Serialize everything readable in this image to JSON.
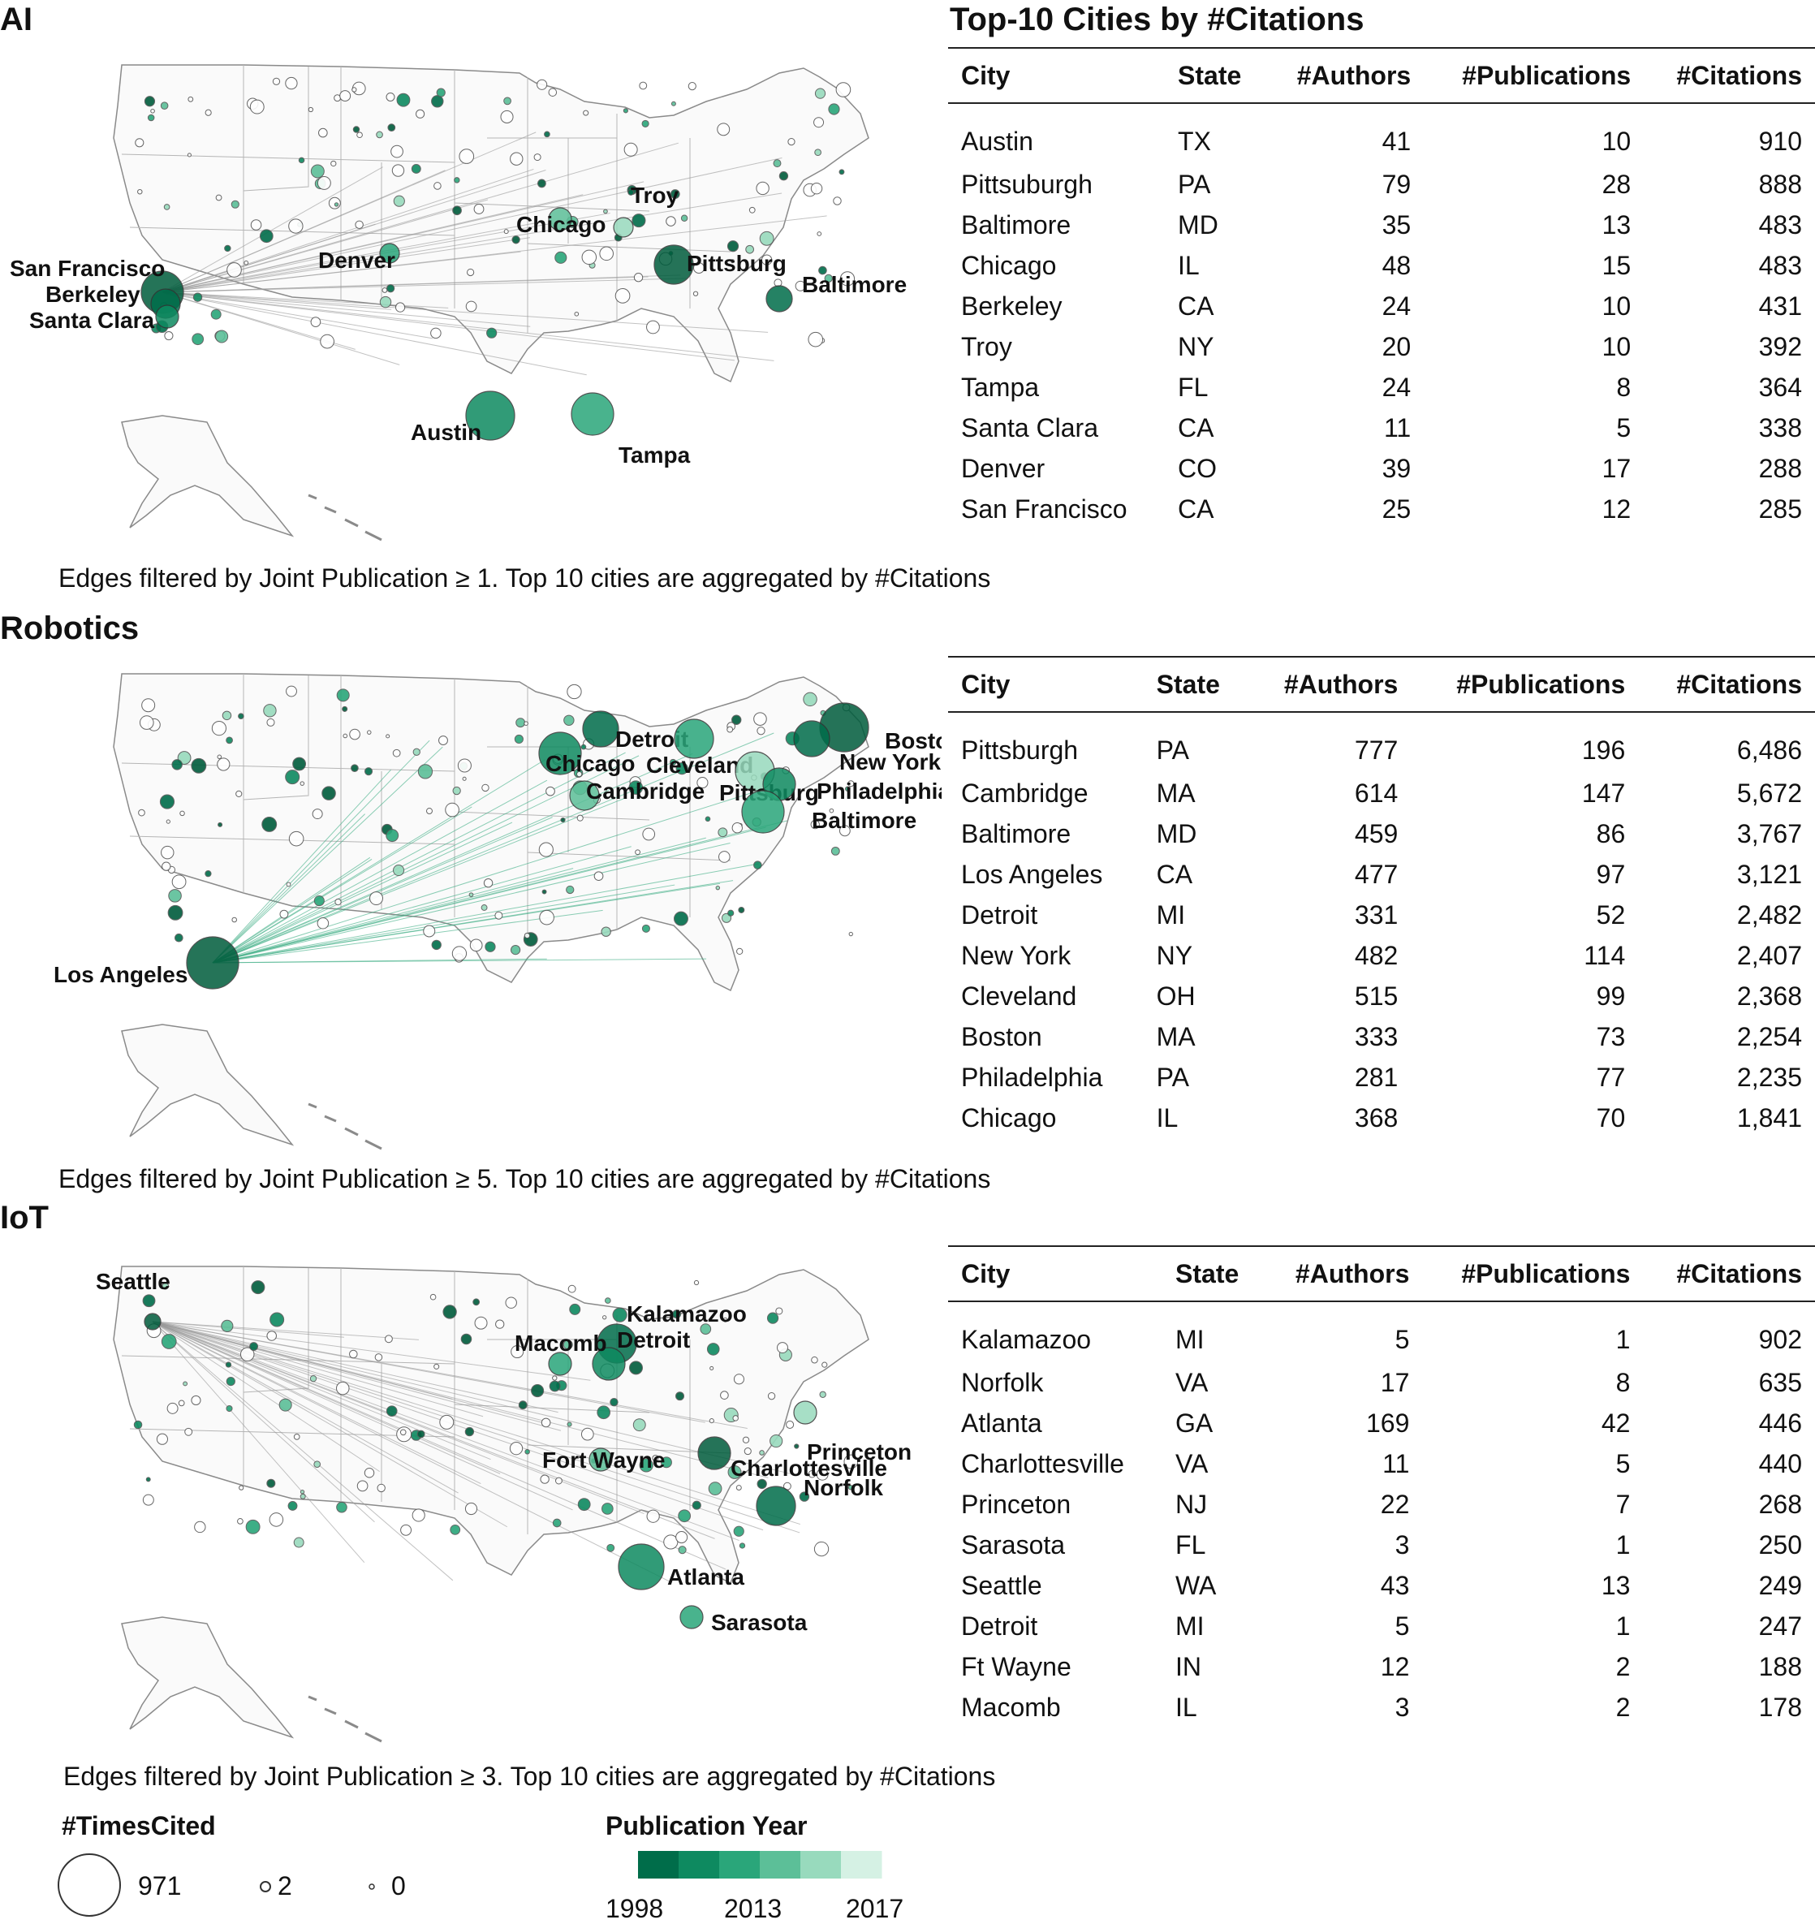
{
  "panels": [
    {
      "title": "AI",
      "caption": "Edges filtered by Joint Publication ≥ 1. Top 10 cities are aggregated by #Citations",
      "table_title": "Top-10 Cities by #Citations",
      "map_labels": [
        "San Francisco",
        "Berkeley",
        "Santa Clara",
        "Denver",
        "Chicago",
        "Troy",
        "Pittsburg",
        "Baltimore",
        "Austin",
        "Tampa"
      ]
    },
    {
      "title": "Robotics",
      "caption": "Edges filtered by Joint Publication ≥ 5. Top 10 cities are aggregated by #Citations",
      "table_title": "",
      "map_labels": [
        "Los Angeles",
        "Detroit",
        "Chicago",
        "Cleveland",
        "Cambridge",
        "Pittsburg",
        "Boston",
        "New York",
        "Philadelphia",
        "Baltimore"
      ]
    },
    {
      "title": "IoT",
      "caption": "Edges filtered by Joint Publication ≥ 3. Top 10 cities are aggregated by #Citations",
      "table_title": "",
      "map_labels": [
        "Seattle",
        "Kalamazoo",
        "Detroit",
        "Macomb",
        "Fort Wayne",
        "Princeton",
        "Charlottesville",
        "Norfolk",
        "Atlanta",
        "Sarasota"
      ]
    }
  ],
  "table_headers": [
    "City",
    "State",
    "#Authors",
    "#Publications",
    "#Citations"
  ],
  "chart_data": [
    {
      "type": "table",
      "title": "AI",
      "columns": [
        "City",
        "State",
        "#Authors",
        "#Publications",
        "#Citations"
      ],
      "rows": [
        [
          "Austin",
          "TX",
          "41",
          "10",
          "910"
        ],
        [
          "Pittsuburgh",
          "PA",
          "79",
          "28",
          "888"
        ],
        [
          "Baltimore",
          "MD",
          "35",
          "13",
          "483"
        ],
        [
          "Chicago",
          "IL",
          "48",
          "15",
          "483"
        ],
        [
          "Berkeley",
          "CA",
          "24",
          "10",
          "431"
        ],
        [
          "Troy",
          "NY",
          "20",
          "10",
          "392"
        ],
        [
          "Tampa",
          "FL",
          "24",
          "8",
          "364"
        ],
        [
          "Santa Clara",
          "CA",
          "11",
          "5",
          "338"
        ],
        [
          "Denver",
          "CO",
          "39",
          "17",
          "288"
        ],
        [
          "San Francisco",
          "CA",
          "25",
          "12",
          "285"
        ]
      ]
    },
    {
      "type": "table",
      "title": "Robotics",
      "columns": [
        "City",
        "State",
        "#Authors",
        "#Publications",
        "#Citations"
      ],
      "rows": [
        [
          "Pittsburgh",
          "PA",
          "777",
          "196",
          "6,486"
        ],
        [
          "Cambridge",
          "MA",
          "614",
          "147",
          "5,672"
        ],
        [
          "Baltimore",
          "MD",
          "459",
          "86",
          "3,767"
        ],
        [
          "Los Angeles",
          "CA",
          "477",
          "97",
          "3,121"
        ],
        [
          "Detroit",
          "MI",
          "331",
          "52",
          "2,482"
        ],
        [
          "New York",
          "NY",
          "482",
          "114",
          "2,407"
        ],
        [
          "Cleveland",
          "OH",
          "515",
          "99",
          "2,368"
        ],
        [
          "Boston",
          "MA",
          "333",
          "73",
          "2,254"
        ],
        [
          "Philadelphia",
          "PA",
          "281",
          "77",
          "2,235"
        ],
        [
          "Chicago",
          "IL",
          "368",
          "70",
          "1,841"
        ]
      ]
    },
    {
      "type": "table",
      "title": "IoT",
      "columns": [
        "City",
        "State",
        "#Authors",
        "#Publications",
        "#Citations"
      ],
      "rows": [
        [
          "Kalamazoo",
          "MI",
          "5",
          "1",
          "902"
        ],
        [
          "Norfolk",
          "VA",
          "17",
          "8",
          "635"
        ],
        [
          "Atlanta",
          "GA",
          "169",
          "42",
          "446"
        ],
        [
          "Charlottesville",
          "VA",
          "11",
          "5",
          "440"
        ],
        [
          "Princeton",
          "NJ",
          "22",
          "7",
          "268"
        ],
        [
          "Sarasota",
          "FL",
          "3",
          "1",
          "250"
        ],
        [
          "Seattle",
          "WA",
          "43",
          "13",
          "249"
        ],
        [
          "Detroit",
          "MI",
          "5",
          "1",
          "247"
        ],
        [
          "Ft Wayne",
          "IN",
          "12",
          "2",
          "188"
        ],
        [
          "Macomb",
          "IL",
          "3",
          "2",
          "178"
        ]
      ]
    }
  ],
  "legend": {
    "size_title": "#TimesCited",
    "size_values": [
      "971",
      "2",
      "0"
    ],
    "color_title": "Publication Year",
    "color_ticks": [
      "1998",
      "2013",
      "2017"
    ],
    "color_ramp": [
      "#006d4a",
      "#0e8a60",
      "#2aa67a",
      "#5cbf98",
      "#98dabd",
      "#d5f1e4"
    ]
  }
}
